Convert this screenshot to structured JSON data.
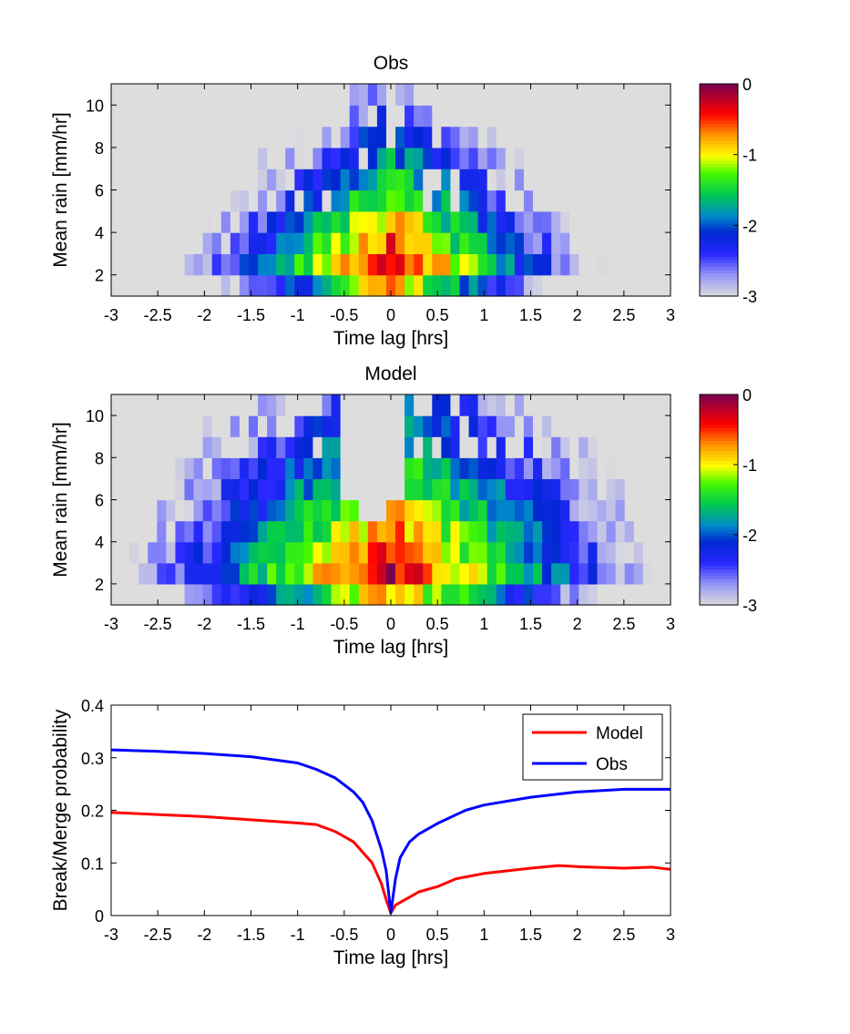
{
  "chart_data": [
    {
      "type": "heatmap",
      "title": "Obs",
      "xlabel": "Time lag [hrs]",
      "ylabel": "Mean rain [mm/hr]",
      "xlim": [
        -3,
        3
      ],
      "ylim": [
        1,
        11
      ],
      "xticks": [
        "-3",
        "-2.5",
        "-2",
        "-1.5",
        "-1",
        "-0.5",
        "0",
        "0.5",
        "1",
        "1.5",
        "2",
        "2.5",
        "3"
      ],
      "yticks": [
        "2",
        "4",
        "6",
        "8",
        "10"
      ],
      "colorbar": {
        "range": [
          -3,
          0
        ],
        "ticks": [
          "0",
          "-1",
          "-2",
          "-3"
        ],
        "colormap": "jet-with-light-gray-low-end"
      },
      "x_bins": 61,
      "y_bins": [
        1,
        2,
        3,
        4,
        5,
        6,
        7,
        8,
        9,
        10,
        11
      ],
      "peak": {
        "x": 0,
        "y": 2.5,
        "value": -0.2
      },
      "x_halfwidth_low": 1.2,
      "y_decay": 0.3,
      "edge_x_halfwidth": [
        2.9,
        2.7,
        2.6,
        2.4,
        2.2,
        2.0,
        1.6,
        1.2,
        0.8,
        0.6
      ]
    },
    {
      "type": "heatmap",
      "title": "Model",
      "xlabel": "Time lag [hrs]",
      "ylabel": "Mean rain [mm/hr]",
      "xlim": [
        -3,
        3
      ],
      "ylim": [
        1,
        11
      ],
      "xticks": [
        "-3",
        "-2.5",
        "-2",
        "-1.5",
        "-1",
        "-0.5",
        "0",
        "0.5",
        "1",
        "1.5",
        "2",
        "2.5",
        "3"
      ],
      "yticks": [
        "2",
        "4",
        "6",
        "8",
        "10"
      ],
      "colorbar": {
        "range": [
          -3,
          0
        ],
        "ticks": [
          "0",
          "-1",
          "-2",
          "-3"
        ],
        "colormap": "jet-with-light-gray-low-end"
      },
      "x_bins": 61,
      "y_bins": [
        1,
        2,
        3,
        4,
        5,
        6,
        7,
        8,
        9,
        10,
        11
      ],
      "peak": {
        "x": 0,
        "y": 2.5,
        "value": -0.2
      },
      "x_halfwidth_low": 1.6,
      "y_decay": 0.22,
      "gap_near_zero": {
        "x_range": [
          -0.5,
          0.1
        ],
        "from_y": 5
      }
    },
    {
      "type": "line",
      "title": "",
      "xlabel": "Time lag [hrs]",
      "ylabel": "Break/Merge probability",
      "xlim": [
        -3,
        3
      ],
      "ylim": [
        0,
        0.4
      ],
      "xticks": [
        "-3",
        "-2.5",
        "-2",
        "-1.5",
        "-1",
        "-0.5",
        "0",
        "0.5",
        "1",
        "1.5",
        "2",
        "2.5",
        "3"
      ],
      "yticks": [
        "0",
        "0.1",
        "0.2",
        "0.3",
        "0.4"
      ],
      "legend": "top-right",
      "series": [
        {
          "name": "Model",
          "color": "#ff0000",
          "x": [
            -3,
            -2.5,
            -2,
            -1.5,
            -1,
            -0.8,
            -0.6,
            -0.4,
            -0.2,
            -0.1,
            -0.05,
            0,
            0.05,
            0.1,
            0.2,
            0.3,
            0.5,
            0.7,
            1.0,
            1.5,
            1.8,
            2.0,
            2.5,
            2.8,
            3.0
          ],
          "y": [
            0.196,
            0.192,
            0.188,
            0.182,
            0.176,
            0.173,
            0.16,
            0.14,
            0.1,
            0.06,
            0.03,
            0.005,
            0.02,
            0.025,
            0.035,
            0.045,
            0.055,
            0.07,
            0.08,
            0.09,
            0.095,
            0.093,
            0.09,
            0.092,
            0.088
          ]
        },
        {
          "name": "Obs",
          "color": "#0000ff",
          "x": [
            -3,
            -2.5,
            -2,
            -1.5,
            -1,
            -0.8,
            -0.6,
            -0.4,
            -0.3,
            -0.2,
            -0.1,
            -0.05,
            0,
            0.05,
            0.1,
            0.2,
            0.3,
            0.5,
            0.8,
            1.0,
            1.5,
            2.0,
            2.5,
            3.0
          ],
          "y": [
            0.315,
            0.312,
            0.308,
            0.302,
            0.29,
            0.278,
            0.262,
            0.235,
            0.215,
            0.18,
            0.125,
            0.085,
            0.005,
            0.07,
            0.11,
            0.14,
            0.155,
            0.175,
            0.2,
            0.21,
            0.225,
            0.235,
            0.24,
            0.24
          ]
        }
      ]
    }
  ]
}
